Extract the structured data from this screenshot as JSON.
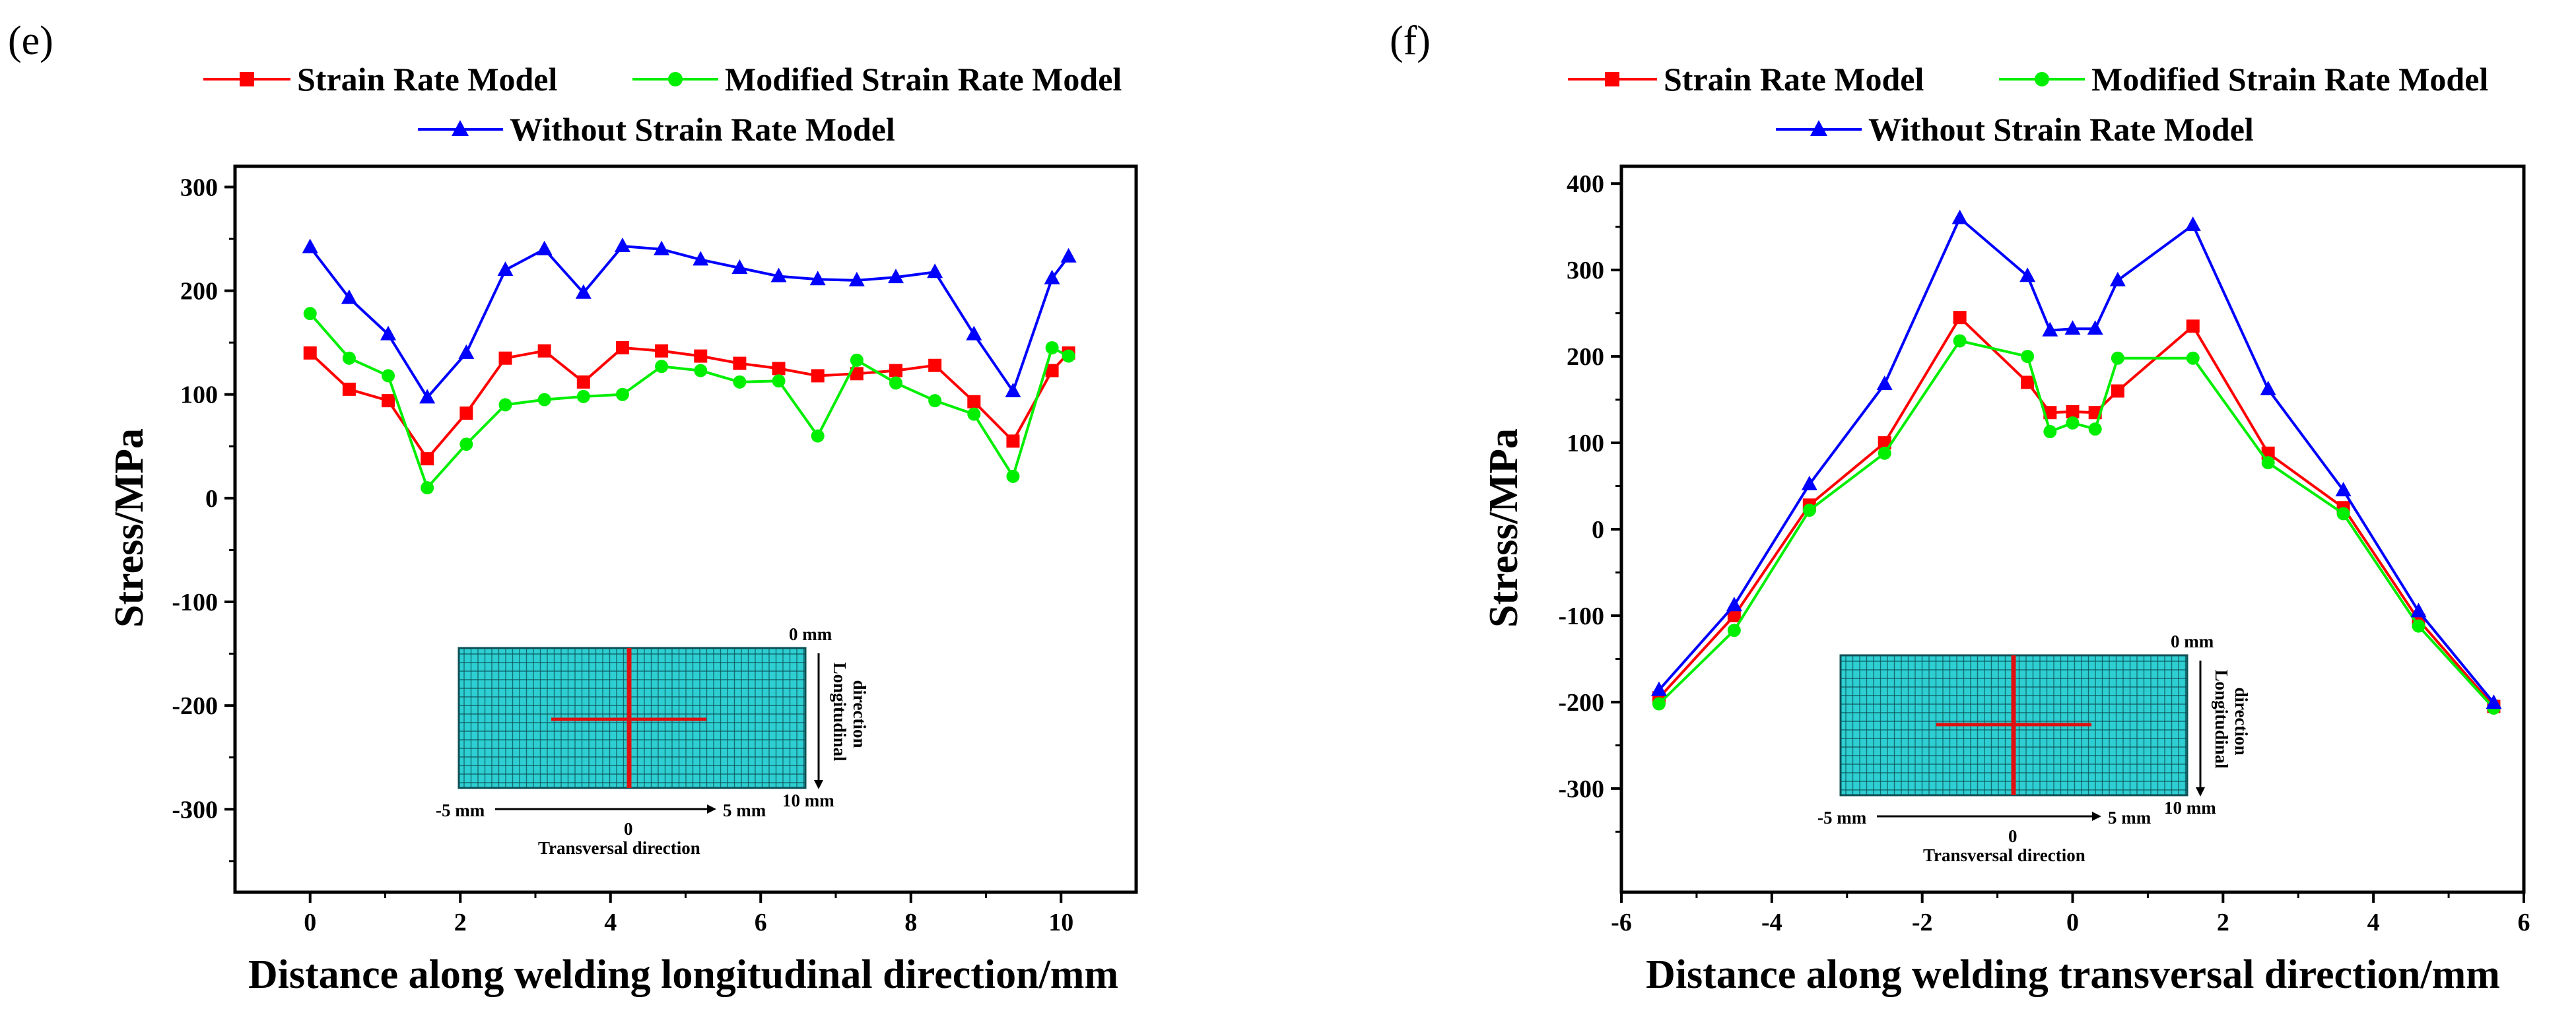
{
  "colors": {
    "strain": "#ff0000",
    "modified": "#00ee00",
    "without": "#0000ff",
    "mesh_fill": "#2ecfd2",
    "mesh_line": "#0c4f55",
    "cross": "#e01010"
  },
  "inset": {
    "zero_label": "0 mm",
    "ten_label": "10 mm",
    "minus_five_label": "-5 mm",
    "center_label": "0",
    "plus_five_label": "5 mm",
    "transversal_label": "Transversal direction",
    "longitudinal_label_1": "Longitudinal",
    "longitudinal_label_2": "direction"
  },
  "chart_data": [
    {
      "panel": "(e)",
      "type": "line",
      "xlabel": "Distance along welding longitudinal direction/mm",
      "ylabel": "Stress/MPa",
      "xlim": [
        -1,
        11
      ],
      "ylim": [
        -380,
        320
      ],
      "xticks": [
        0,
        2,
        4,
        6,
        8,
        10
      ],
      "yticks": [
        -300,
        -200,
        -100,
        0,
        100,
        200,
        300
      ],
      "legend": [
        "Strain Rate Model",
        "Modified Strain Rate Model",
        "Without Strain Rate Model"
      ],
      "series": [
        {
          "name": "Strain Rate Model",
          "marker": "square",
          "x": [
            0,
            0.52,
            1.04,
            1.56,
            2.08,
            2.6,
            3.12,
            3.64,
            4.16,
            4.68,
            5.2,
            5.72,
            6.24,
            6.76,
            7.28,
            7.8,
            8.32,
            8.84,
            9.36,
            9.88,
            10.1
          ],
          "y": [
            140,
            105,
            94,
            38,
            82,
            135,
            142,
            112,
            145,
            142,
            137,
            130,
            125,
            118,
            120,
            123,
            128,
            93,
            55,
            123,
            140
          ]
        },
        {
          "name": "Modified Strain Rate Model",
          "marker": "circle",
          "x": [
            0,
            0.52,
            1.04,
            1.56,
            2.08,
            2.6,
            3.12,
            3.64,
            4.16,
            4.68,
            5.2,
            5.72,
            6.24,
            6.76,
            7.28,
            7.8,
            8.32,
            8.84,
            9.36,
            9.88,
            10.1
          ],
          "y": [
            178,
            135,
            118,
            10,
            52,
            90,
            95,
            98,
            100,
            127,
            123,
            112,
            113,
            60,
            133,
            111,
            94,
            81,
            21,
            145,
            137
          ]
        },
        {
          "name": "Without Strain Rate Model",
          "marker": "triangle",
          "x": [
            0,
            0.52,
            1.04,
            1.56,
            2.08,
            2.6,
            3.12,
            3.64,
            4.16,
            4.68,
            5.2,
            5.72,
            6.24,
            6.76,
            7.28,
            7.8,
            8.32,
            8.84,
            9.36,
            9.88,
            10.1
          ],
          "y": [
            242,
            193,
            158,
            97,
            140,
            220,
            240,
            198,
            243,
            240,
            230,
            222,
            214,
            211,
            210,
            213,
            218,
            158,
            103,
            212,
            233
          ]
        }
      ]
    },
    {
      "panel": "(f)",
      "type": "line",
      "xlabel": "Distance along welding transversal direction/mm",
      "ylabel": "Stress/MPa",
      "xlim": [
        -6,
        6
      ],
      "ylim": [
        -420,
        420
      ],
      "xticks": [
        -6,
        -4,
        -2,
        0,
        2,
        4,
        6
      ],
      "yticks": [
        -300,
        -200,
        -100,
        0,
        100,
        200,
        300,
        400
      ],
      "legend": [
        "Strain Rate Model",
        "Modified Strain Rate Model",
        "Without Strain Rate Model"
      ],
      "series": [
        {
          "name": "Strain Rate Model",
          "marker": "square",
          "x": [
            -5.5,
            -4.5,
            -3.5,
            -2.5,
            -1.5,
            -0.6,
            -0.3,
            0,
            0.3,
            0.6,
            1.6,
            2.6,
            3.6,
            4.6,
            5.6
          ],
          "y": [
            -195,
            -100,
            28,
            100,
            245,
            170,
            135,
            136,
            135,
            160,
            235,
            88,
            25,
            -105,
            -205
          ]
        },
        {
          "name": "Modified Strain Rate Model",
          "marker": "circle",
          "x": [
            -5.5,
            -4.5,
            -3.5,
            -2.5,
            -1.5,
            -0.6,
            -0.3,
            0,
            0.3,
            0.6,
            1.6,
            2.6,
            3.6,
            4.6,
            5.6
          ],
          "y": [
            -202,
            -117,
            22,
            88,
            218,
            200,
            113,
            123,
            116,
            198,
            198,
            77,
            18,
            -112,
            -207
          ]
        },
        {
          "name": "Without Strain Rate Model",
          "marker": "triangle",
          "x": [
            -5.5,
            -4.5,
            -3.5,
            -2.5,
            -1.5,
            -0.6,
            -0.3,
            0,
            0.3,
            0.6,
            1.6,
            2.6,
            3.6,
            4.6,
            5.6
          ],
          "y": [
            -186,
            -88,
            52,
            168,
            360,
            293,
            230,
            232,
            232,
            288,
            352,
            162,
            45,
            -95,
            -201
          ]
        }
      ]
    }
  ]
}
